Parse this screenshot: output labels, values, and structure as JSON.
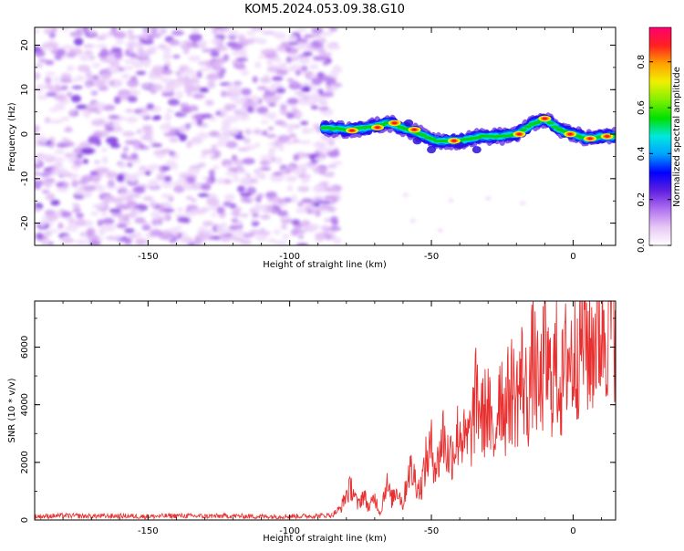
{
  "title": "KOM5.2024.053.09.38.G10",
  "chart_data": [
    {
      "type": "heatmap",
      "xlabel": "Height of straight line (km)",
      "ylabel": "Frequency (Hz)",
      "xlim": [
        -190,
        15
      ],
      "ylim": [
        -25,
        24
      ],
      "xticks": [
        -150,
        -100,
        -50,
        0
      ],
      "xtick_labels": [
        "-150",
        "-100",
        "-50",
        "0"
      ],
      "yticks": [
        -20,
        -10,
        0,
        10,
        20
      ],
      "ytick_labels": [
        "-20",
        "-10",
        "0",
        "10",
        "20"
      ],
      "noise_region_x": [
        -190,
        -83
      ],
      "signal_track": {
        "x": [
          -88,
          -80,
          -72,
          -65,
          -58,
          -52,
          -48,
          -40,
          -32,
          -25,
          -20,
          -15,
          -10,
          -5,
          0,
          5,
          10,
          15
        ],
        "freq": [
          1.5,
          1.0,
          1.5,
          2.5,
          1.0,
          -0.5,
          -1.5,
          -1.5,
          -0.5,
          -0.5,
          0.0,
          2.0,
          3.5,
          1.0,
          0.0,
          -1.0,
          -0.5,
          -0.5
        ]
      },
      "hotspots": [
        {
          "x": -78,
          "freq": 0.8
        },
        {
          "x": -69,
          "freq": 1.5
        },
        {
          "x": -63,
          "freq": 2.5
        },
        {
          "x": -56,
          "freq": 1.0
        },
        {
          "x": -42,
          "freq": -1.5
        },
        {
          "x": -19,
          "freq": 0.0
        },
        {
          "x": -10,
          "freq": 3.5
        },
        {
          "x": -1,
          "freq": 0.0
        },
        {
          "x": 6,
          "freq": -1.0
        },
        {
          "x": 12,
          "freq": -0.5
        }
      ],
      "colorbar": {
        "label": "Normalized spectral amplitude",
        "range": [
          0,
          0.95
        ],
        "ticks": [
          0.0,
          0.2,
          0.4,
          0.6,
          0.8
        ],
        "tick_labels": [
          "0.0",
          "0.2",
          "0.4",
          "0.6",
          "0.8"
        ],
        "colors": [
          "#ffffff",
          "#e8c8f5",
          "#b070f0",
          "#6020e0",
          "#0000ff",
          "#00a0ff",
          "#00e8e0",
          "#00e000",
          "#80f000",
          "#f0f000",
          "#ffa000",
          "#ff2020",
          "#ff0070"
        ]
      }
    },
    {
      "type": "line",
      "xlabel": "Height of straight line (km)",
      "ylabel": "SNR (10 * v/v)",
      "xlim": [
        -190,
        15
      ],
      "ylim": [
        0,
        7600
      ],
      "xticks": [
        -150,
        -100,
        -50,
        0
      ],
      "xtick_labels": [
        "-150",
        "-100",
        "-50",
        "0"
      ],
      "yticks": [
        0,
        2000,
        4000,
        6000
      ],
      "ytick_labels": [
        "0",
        "2000",
        "4000",
        "6000"
      ],
      "color": "#e83030",
      "x": [
        -190,
        -180,
        -170,
        -160,
        -150,
        -140,
        -130,
        -120,
        -110,
        -100,
        -90,
        -85,
        -82,
        -80,
        -78,
        -76,
        -74,
        -72,
        -70,
        -68,
        -66,
        -64,
        -62,
        -60,
        -58,
        -56,
        -54,
        -52,
        -50,
        -48,
        -46,
        -44,
        -42,
        -40,
        -38,
        -36,
        -34,
        -32,
        -30,
        -28,
        -26,
        -24,
        -22,
        -20,
        -18,
        -16,
        -14,
        -12,
        -10,
        -8,
        -6,
        -4,
        -2,
        0,
        2,
        4,
        6,
        8,
        10,
        12,
        15
      ],
      "y": [
        120,
        150,
        130,
        140,
        120,
        150,
        130,
        140,
        120,
        130,
        140,
        180,
        400,
        900,
        1150,
        500,
        900,
        400,
        800,
        200,
        1300,
        700,
        1100,
        500,
        1800,
        1500,
        1000,
        2000,
        2500,
        1800,
        3000,
        2200,
        2500,
        3200,
        2600,
        3000,
        4400,
        3500,
        4000,
        2400,
        4800,
        3800,
        4600,
        4200,
        5000,
        4100,
        5700,
        4200,
        5600,
        4800,
        5400,
        4600,
        5800,
        5500,
        6200,
        6600,
        5800,
        6600,
        6700,
        7000,
        7300
      ]
    }
  ]
}
